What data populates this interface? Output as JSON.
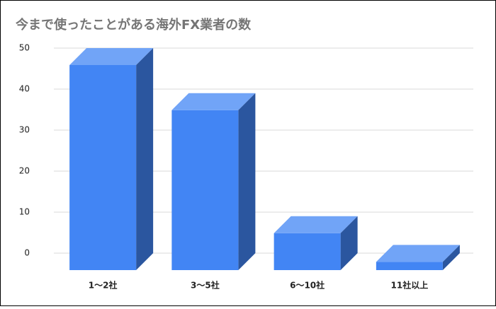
{
  "chart_data": {
    "type": "bar3d",
    "title": "今まで使ったことがある海外FX業者の数",
    "categories": [
      "1～2社",
      "3～5社",
      "6～10社",
      "11社以上"
    ],
    "values": [
      50,
      39,
      9,
      2
    ],
    "color": "#4285f4",
    "ylim": [
      0,
      50
    ],
    "yticks": [
      0,
      10,
      20,
      30,
      40,
      50
    ],
    "grid": true
  }
}
